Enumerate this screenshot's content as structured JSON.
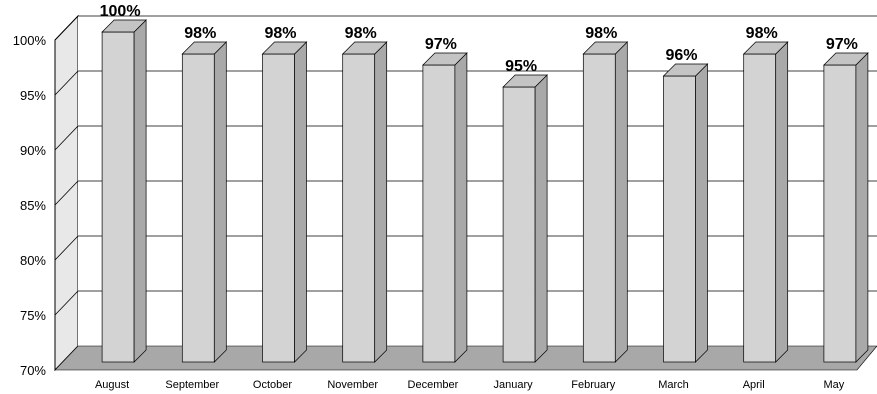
{
  "chart_data": {
    "type": "bar",
    "categories": [
      "August",
      "September",
      "October",
      "November",
      "December",
      "January",
      "February",
      "March",
      "April",
      "May"
    ],
    "values": [
      100,
      98,
      98,
      98,
      97,
      95,
      98,
      96,
      98,
      97
    ],
    "value_labels": [
      "100%",
      "98%",
      "98%",
      "98%",
      "97%",
      "95%",
      "98%",
      "96%",
      "98%",
      "97%"
    ],
    "title": "",
    "xlabel": "",
    "ylabel": "",
    "ylim": [
      70,
      100
    ],
    "yticks": [
      70,
      75,
      80,
      85,
      90,
      95,
      100
    ],
    "ytick_labels": [
      "70%",
      "75%",
      "80%",
      "85%",
      "90%",
      "95%",
      "100%"
    ],
    "grid": true,
    "legend": "none",
    "style": "3d",
    "colors": {
      "bar_front": "#d3d3d3",
      "bar_side": "#a9a9a9",
      "bar_top": "#c4c4c4",
      "back_wall": "#ffffff",
      "side_wall": "#e8e8e8",
      "floor": "#a8a8a8",
      "gridline": "#000000"
    }
  }
}
